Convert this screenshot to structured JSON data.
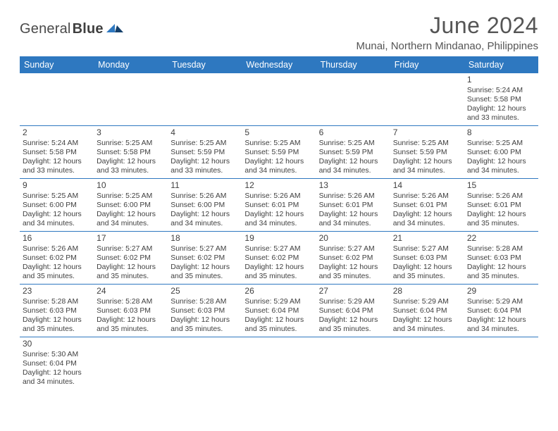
{
  "brand": {
    "name_a": "General",
    "name_b": "Blue"
  },
  "title": "June 2024",
  "location": "Munai, Northern Mindanao, Philippines",
  "colors": {
    "header_bg": "#2e78c0",
    "header_fg": "#ffffff",
    "rule": "#2e78c0",
    "text": "#404040"
  },
  "dows": [
    "Sunday",
    "Monday",
    "Tuesday",
    "Wednesday",
    "Thursday",
    "Friday",
    "Saturday"
  ],
  "startDow": 6,
  "daysInMonth": 30,
  "days": {
    "1": {
      "sunrise": "5:24 AM",
      "sunset": "5:58 PM",
      "day_h": 12,
      "day_m": 33
    },
    "2": {
      "sunrise": "5:24 AM",
      "sunset": "5:58 PM",
      "day_h": 12,
      "day_m": 33
    },
    "3": {
      "sunrise": "5:25 AM",
      "sunset": "5:58 PM",
      "day_h": 12,
      "day_m": 33
    },
    "4": {
      "sunrise": "5:25 AM",
      "sunset": "5:59 PM",
      "day_h": 12,
      "day_m": 33
    },
    "5": {
      "sunrise": "5:25 AM",
      "sunset": "5:59 PM",
      "day_h": 12,
      "day_m": 34
    },
    "6": {
      "sunrise": "5:25 AM",
      "sunset": "5:59 PM",
      "day_h": 12,
      "day_m": 34
    },
    "7": {
      "sunrise": "5:25 AM",
      "sunset": "5:59 PM",
      "day_h": 12,
      "day_m": 34
    },
    "8": {
      "sunrise": "5:25 AM",
      "sunset": "6:00 PM",
      "day_h": 12,
      "day_m": 34
    },
    "9": {
      "sunrise": "5:25 AM",
      "sunset": "6:00 PM",
      "day_h": 12,
      "day_m": 34
    },
    "10": {
      "sunrise": "5:25 AM",
      "sunset": "6:00 PM",
      "day_h": 12,
      "day_m": 34
    },
    "11": {
      "sunrise": "5:26 AM",
      "sunset": "6:00 PM",
      "day_h": 12,
      "day_m": 34
    },
    "12": {
      "sunrise": "5:26 AM",
      "sunset": "6:01 PM",
      "day_h": 12,
      "day_m": 34
    },
    "13": {
      "sunrise": "5:26 AM",
      "sunset": "6:01 PM",
      "day_h": 12,
      "day_m": 34
    },
    "14": {
      "sunrise": "5:26 AM",
      "sunset": "6:01 PM",
      "day_h": 12,
      "day_m": 34
    },
    "15": {
      "sunrise": "5:26 AM",
      "sunset": "6:01 PM",
      "day_h": 12,
      "day_m": 35
    },
    "16": {
      "sunrise": "5:26 AM",
      "sunset": "6:02 PM",
      "day_h": 12,
      "day_m": 35
    },
    "17": {
      "sunrise": "5:27 AM",
      "sunset": "6:02 PM",
      "day_h": 12,
      "day_m": 35
    },
    "18": {
      "sunrise": "5:27 AM",
      "sunset": "6:02 PM",
      "day_h": 12,
      "day_m": 35
    },
    "19": {
      "sunrise": "5:27 AM",
      "sunset": "6:02 PM",
      "day_h": 12,
      "day_m": 35
    },
    "20": {
      "sunrise": "5:27 AM",
      "sunset": "6:02 PM",
      "day_h": 12,
      "day_m": 35
    },
    "21": {
      "sunrise": "5:27 AM",
      "sunset": "6:03 PM",
      "day_h": 12,
      "day_m": 35
    },
    "22": {
      "sunrise": "5:28 AM",
      "sunset": "6:03 PM",
      "day_h": 12,
      "day_m": 35
    },
    "23": {
      "sunrise": "5:28 AM",
      "sunset": "6:03 PM",
      "day_h": 12,
      "day_m": 35
    },
    "24": {
      "sunrise": "5:28 AM",
      "sunset": "6:03 PM",
      "day_h": 12,
      "day_m": 35
    },
    "25": {
      "sunrise": "5:28 AM",
      "sunset": "6:03 PM",
      "day_h": 12,
      "day_m": 35
    },
    "26": {
      "sunrise": "5:29 AM",
      "sunset": "6:04 PM",
      "day_h": 12,
      "day_m": 35
    },
    "27": {
      "sunrise": "5:29 AM",
      "sunset": "6:04 PM",
      "day_h": 12,
      "day_m": 35
    },
    "28": {
      "sunrise": "5:29 AM",
      "sunset": "6:04 PM",
      "day_h": 12,
      "day_m": 34
    },
    "29": {
      "sunrise": "5:29 AM",
      "sunset": "6:04 PM",
      "day_h": 12,
      "day_m": 34
    },
    "30": {
      "sunrise": "5:30 AM",
      "sunset": "6:04 PM",
      "day_h": 12,
      "day_m": 34
    }
  },
  "labels": {
    "sunrise": "Sunrise:",
    "sunset": "Sunset:",
    "daylight": "Daylight:",
    "hours": "hours",
    "and": "and",
    "minutes": "minutes."
  }
}
